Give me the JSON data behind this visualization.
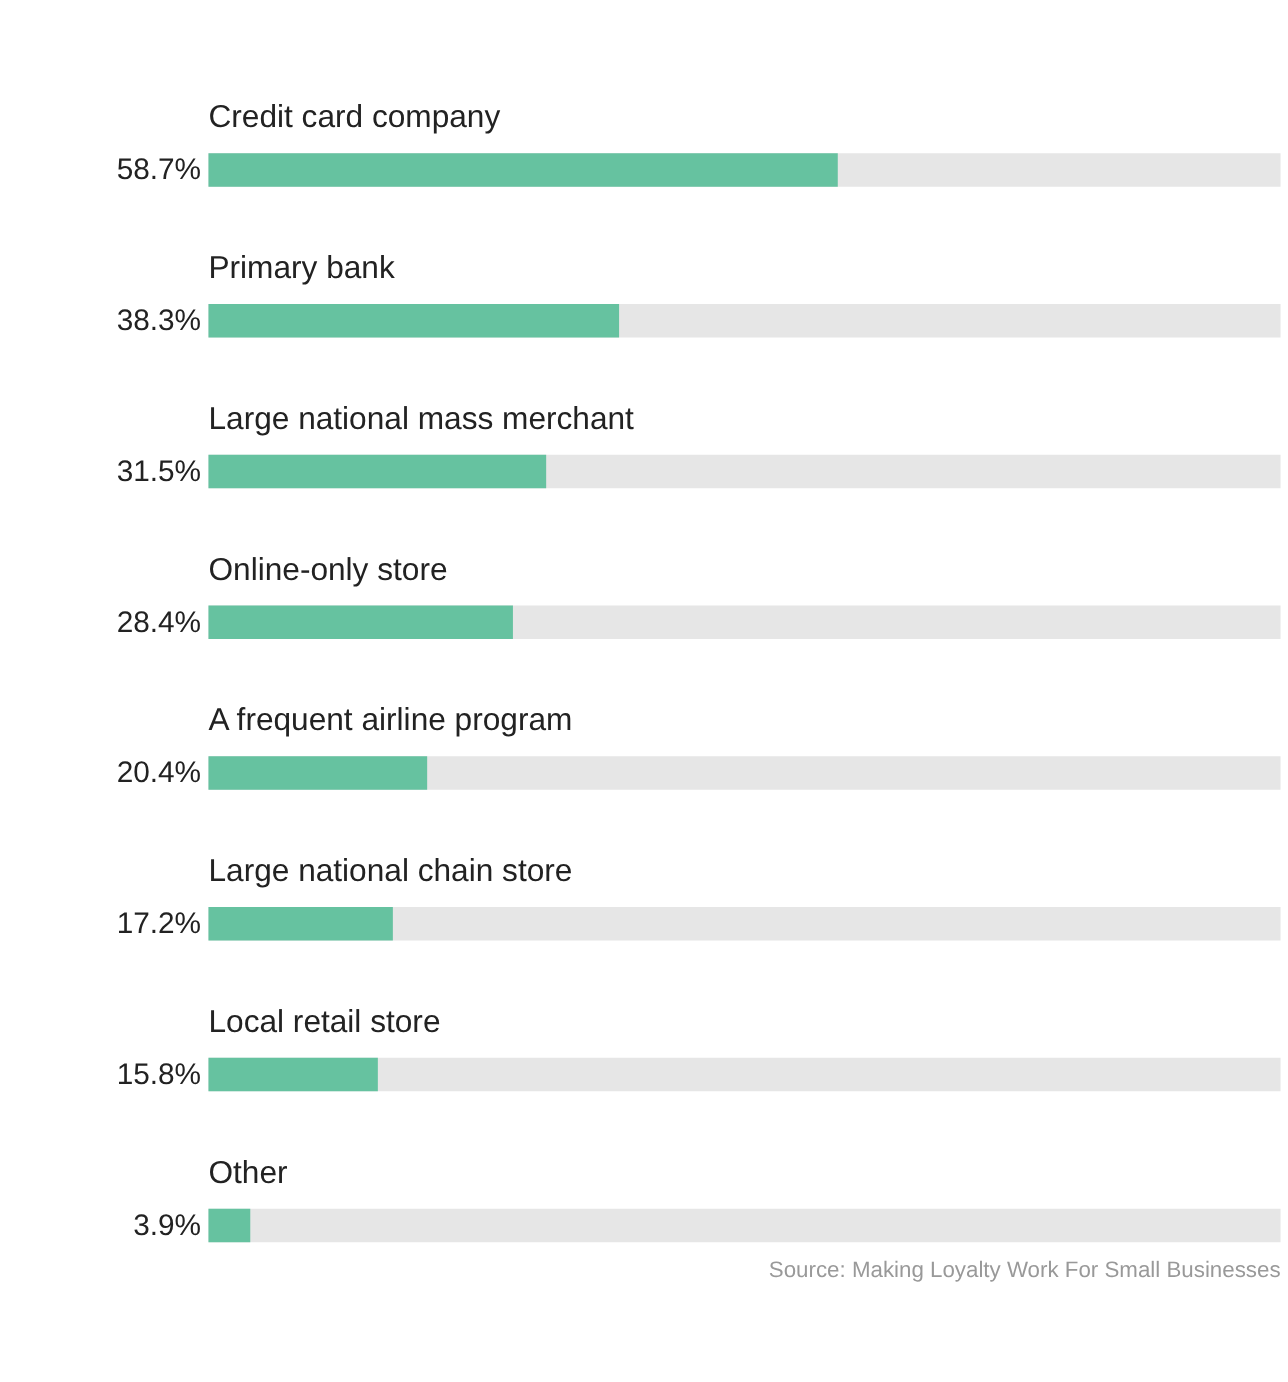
{
  "chart_data": {
    "type": "bar",
    "orientation": "horizontal",
    "categories": [
      "Credit card company",
      "Primary bank",
      "Large national mass merchant",
      "Online-only store",
      "A frequent airline program",
      "Large national chain store",
      "Local retail store",
      "Other"
    ],
    "values": [
      58.7,
      38.3,
      31.5,
      28.4,
      20.4,
      17.2,
      15.8,
      3.9
    ],
    "value_labels": [
      "58.7%",
      "38.3%",
      "31.5%",
      "28.4%",
      "20.4%",
      "17.2%",
      "15.8%",
      "3.9%"
    ],
    "color": "#66c2a0",
    "xlim": [
      0,
      100
    ],
    "tick_labels": false,
    "grid": false,
    "annotations": [
      "Source: Making Loyalty Work For Small Businesses"
    ]
  }
}
